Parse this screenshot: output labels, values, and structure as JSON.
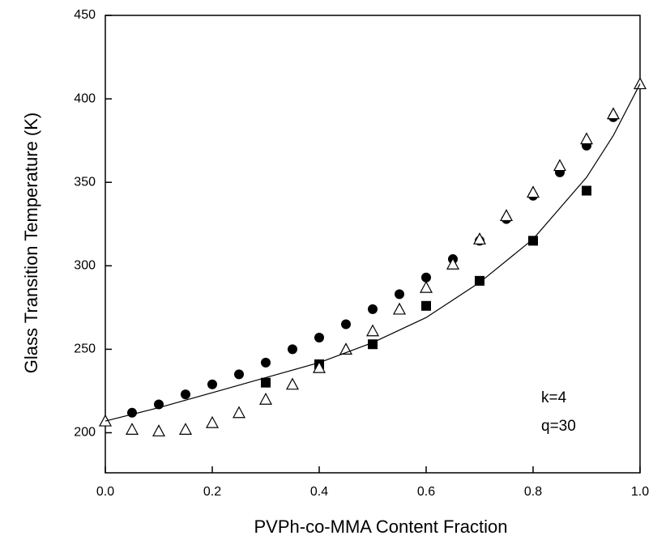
{
  "chart_data": {
    "type": "scatter",
    "xlabel": "PVPh-co-MMA Content Fraction",
    "ylabel": "Glass Transition Temperature (K)",
    "annotations": [
      "k=4",
      "q=30"
    ],
    "xlim": [
      0,
      1
    ],
    "ylim": [
      176,
      450
    ],
    "xticks": [
      {
        "value": 0,
        "label": "0.0"
      },
      0.2,
      0.4,
      0.6,
      0.8,
      {
        "value": 1,
        "label": "1.0"
      }
    ],
    "yticks": [
      200,
      250,
      300,
      350,
      400,
      450
    ],
    "series": [
      {
        "marker": "circle",
        "color": "#000000",
        "x": [
          0.05,
          0.1,
          0.15,
          0.2,
          0.25,
          0.3,
          0.35,
          0.4,
          0.45,
          0.5,
          0.55,
          0.6,
          0.65,
          0.7,
          0.75,
          0.8,
          0.85,
          0.9,
          0.95
        ],
        "values": [
          212,
          217,
          223,
          229,
          235,
          242,
          250,
          257,
          265,
          274,
          283,
          293,
          304,
          315,
          328,
          342,
          356,
          372,
          389
        ]
      },
      {
        "marker": "square",
        "color": "#000000",
        "x": [
          0.3,
          0.4,
          0.5,
          0.6,
          0.7,
          0.8,
          0.9
        ],
        "values": [
          230,
          241,
          253,
          276,
          291,
          315,
          345
        ]
      },
      {
        "marker": "triangle",
        "color": "#000000",
        "x": [
          0,
          0.05,
          0.1,
          0.15,
          0.2,
          0.25,
          0.3,
          0.35,
          0.4,
          0.45,
          0.5,
          0.55,
          0.6,
          0.65,
          0.7,
          0.75,
          0.8,
          0.85,
          0.9,
          0.95,
          1
        ],
        "values": [
          207,
          202,
          201,
          202,
          206,
          212,
          220,
          229,
          239,
          250,
          261,
          274,
          287,
          301,
          316,
          330,
          344,
          360,
          376,
          391,
          409
        ]
      },
      {
        "marker": "line",
        "color": "#000000",
        "x": [
          0,
          0.1,
          0.2,
          0.3,
          0.4,
          0.5,
          0.6,
          0.7,
          0.8,
          0.9,
          0.95,
          1
        ],
        "values": [
          207,
          215,
          224,
          233,
          242,
          254,
          269,
          290,
          316,
          353,
          378,
          409
        ]
      }
    ]
  }
}
